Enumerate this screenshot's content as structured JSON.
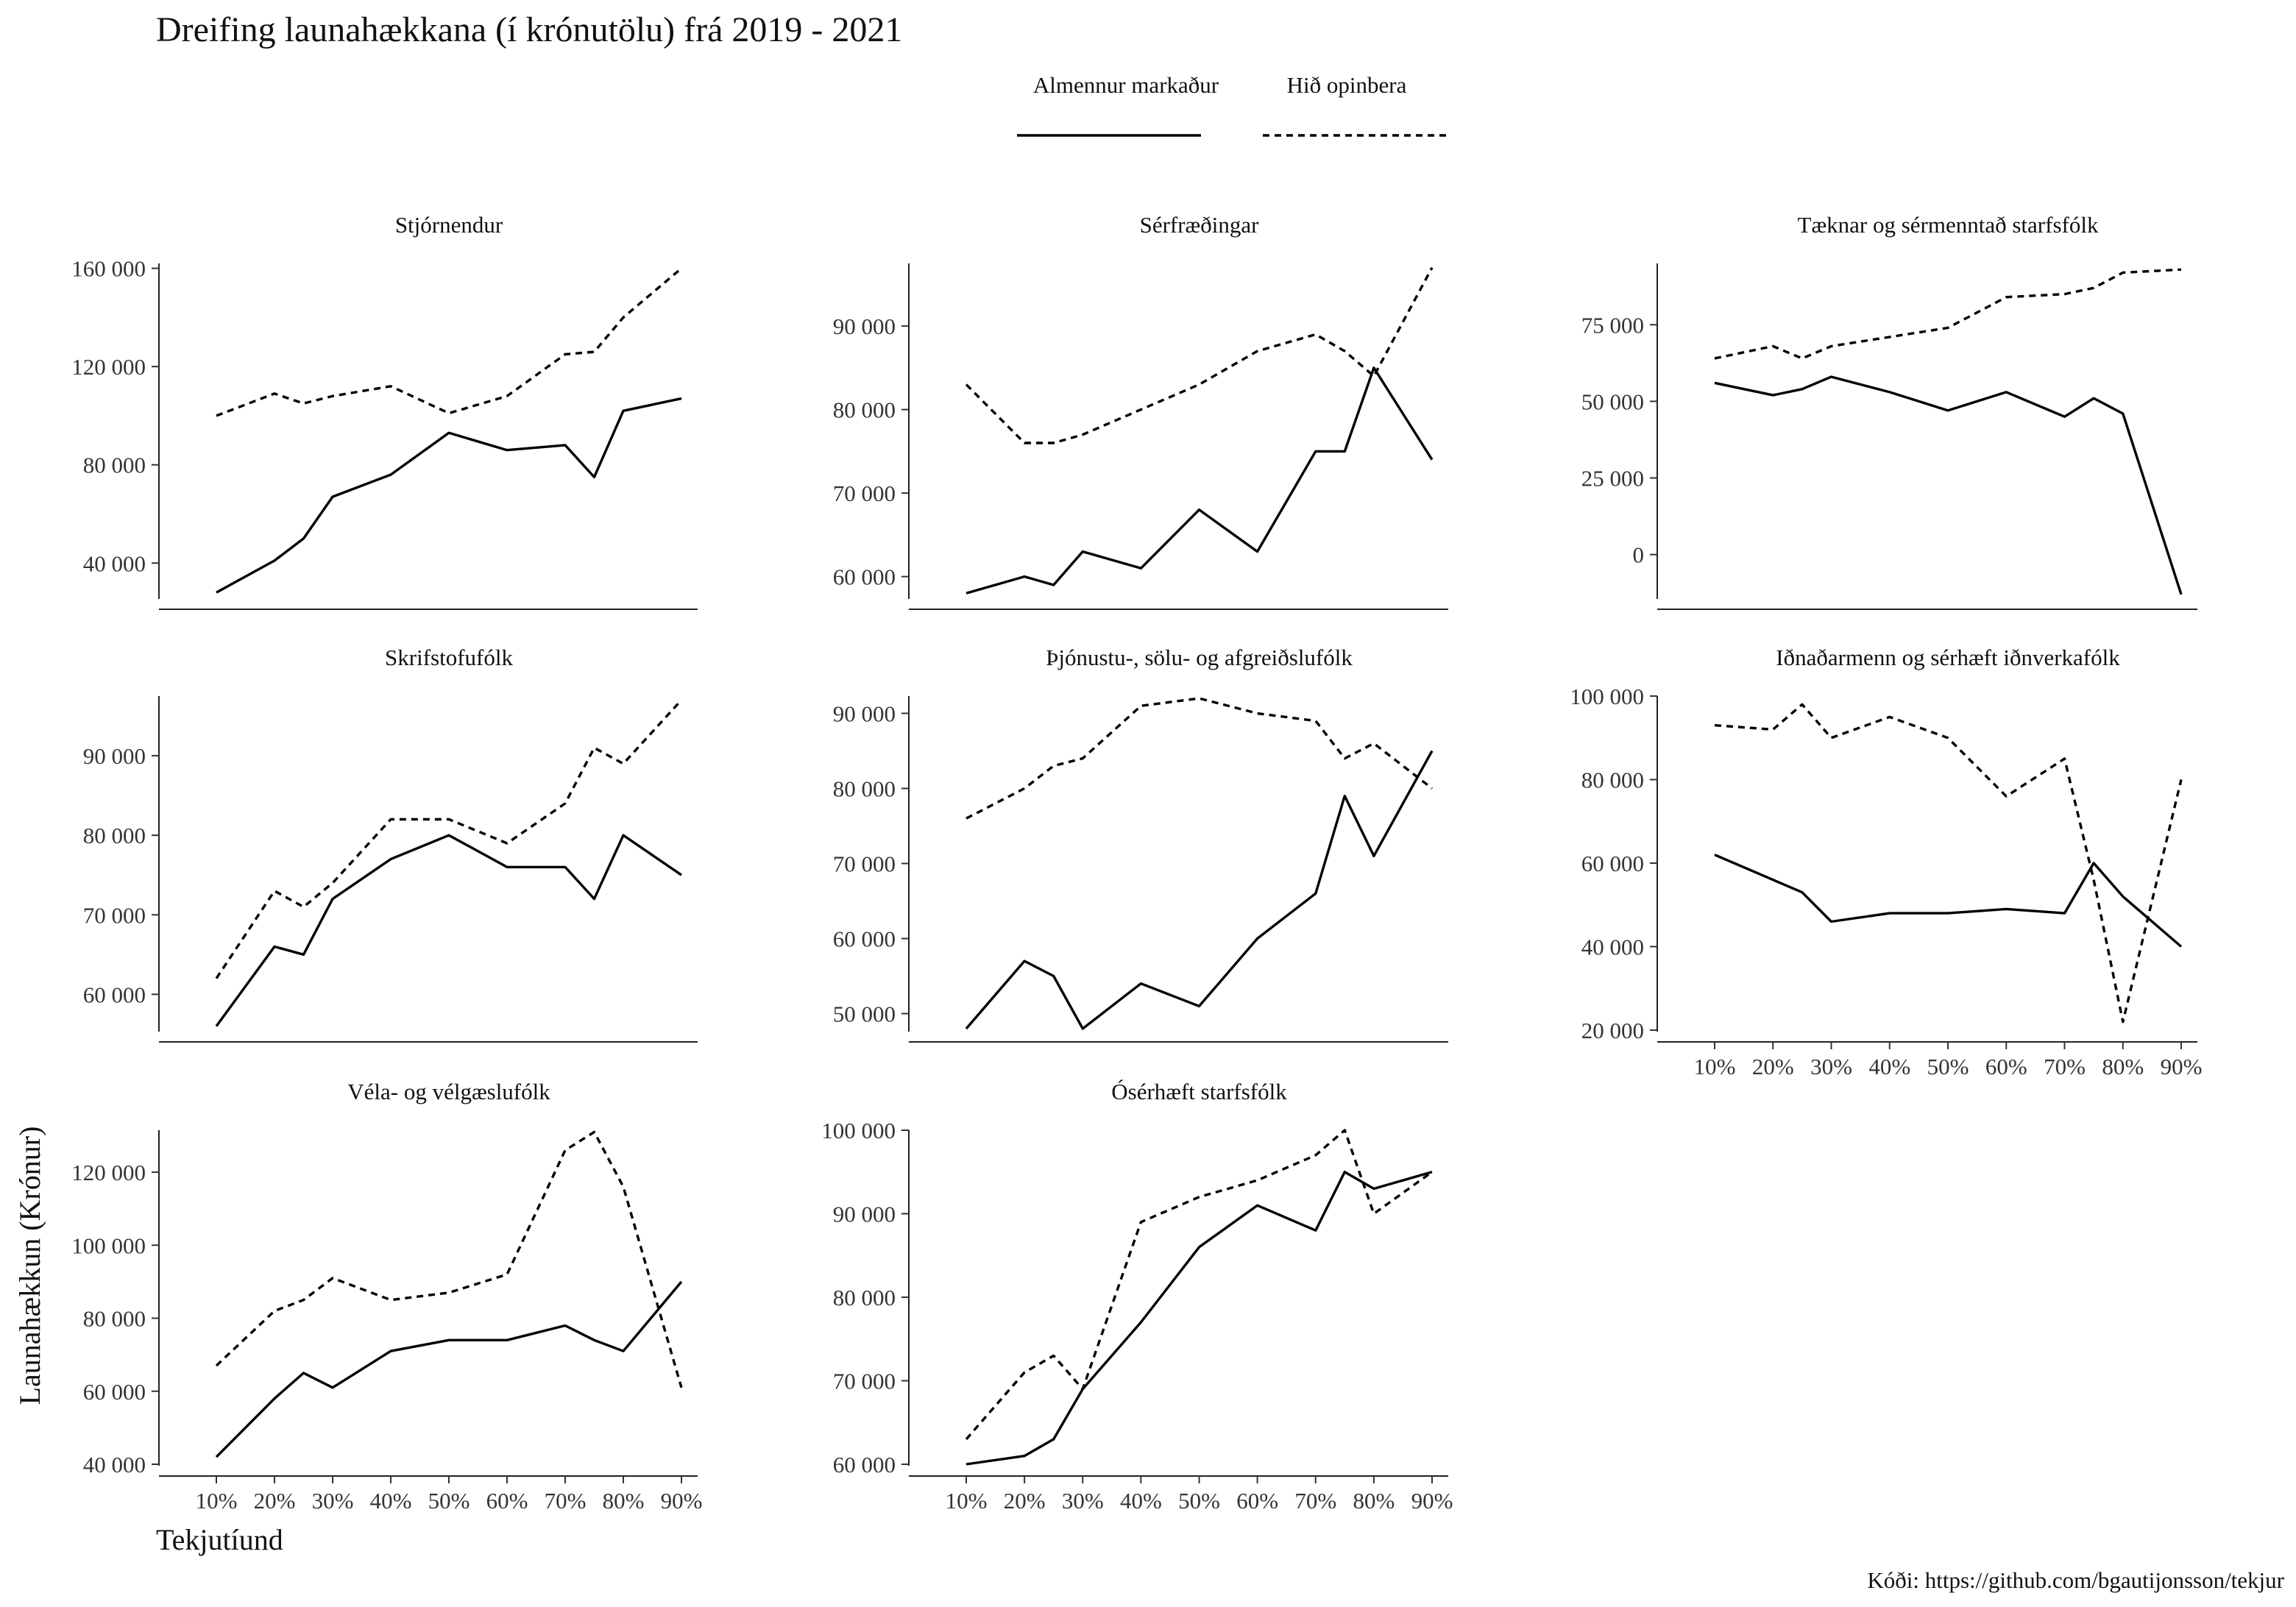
{
  "title": "Dreifing launahækkana (í krónutölu) frá 2019 - 2021",
  "caption": "Kóði: https://github.com/bgautijonsson/tekjur",
  "legend": {
    "items": [
      {
        "label": "Almennur markaður",
        "style": "solid"
      },
      {
        "label": "Hið opinbera",
        "style": "dotted"
      }
    ],
    "placement": "top-center"
  },
  "chart_data": {
    "type": "line",
    "xlabel": "Tekjutíund",
    "ylabel": "Launahækkun (Krónur)",
    "x": [
      10,
      20,
      25,
      30,
      40,
      50,
      60,
      70,
      75,
      80,
      90
    ],
    "x_tick_values": [
      10,
      20,
      30,
      40,
      50,
      60,
      70,
      80,
      90
    ],
    "x_tick_labels": [
      "10%",
      "20%",
      "30%",
      "40%",
      "50%",
      "60%",
      "70%",
      "80%",
      "90%"
    ],
    "grid": false,
    "series_names": [
      "Almennur markaður",
      "Hið opinbera"
    ],
    "facets": [
      {
        "title": "Stjórnendur",
        "ylim": [
          26000,
          162000
        ],
        "yticks": [
          40000,
          80000,
          120000,
          160000
        ],
        "ytick_labels": [
          "40 000",
          "80 000",
          "120 000",
          "160 000"
        ],
        "series": [
          {
            "values": [
              28000,
              41000,
              50000,
              67000,
              76000,
              93000,
              86000,
              88000,
              75000,
              102000,
              107000
            ]
          },
          {
            "values": [
              100000,
              109000,
              105000,
              108000,
              112000,
              101000,
              108000,
              125000,
              126000,
              140000,
              160000
            ]
          }
        ]
      },
      {
        "title": "Sérfræðingar",
        "ylim": [
          57500,
          97500
        ],
        "yticks": [
          60000,
          70000,
          80000,
          90000
        ],
        "ytick_labels": [
          "60 000",
          "70 000",
          "80 000",
          "90 000"
        ],
        "series": [
          {
            "values": [
              58000,
              60000,
              59000,
              63000,
              61000,
              68000,
              63000,
              75000,
              75000,
              85000,
              74000
            ]
          },
          {
            "values": [
              83000,
              76000,
              76000,
              77000,
              80000,
              83000,
              87000,
              89000,
              87000,
              84000,
              97000
            ]
          }
        ]
      },
      {
        "title": "Tæknar og sérmenntað starfsfólk",
        "ylim": [
          -14000,
          95000
        ],
        "yticks": [
          0,
          25000,
          50000,
          75000
        ],
        "ytick_labels": [
          "0",
          "25 000",
          "50 000",
          "75 000"
        ],
        "series": [
          {
            "values": [
              56000,
              52000,
              54000,
              58000,
              53000,
              47000,
              53000,
              45000,
              51000,
              46000,
              -13000
            ]
          },
          {
            "values": [
              64000,
              68000,
              64000,
              68000,
              71000,
              74000,
              84000,
              85000,
              87000,
              92000,
              93000
            ]
          }
        ]
      },
      {
        "title": "Skrifstofufólk",
        "ylim": [
          55500,
          97500
        ],
        "yticks": [
          60000,
          70000,
          80000,
          90000
        ],
        "ytick_labels": [
          "60 000",
          "70 000",
          "80 000",
          "90 000"
        ],
        "series": [
          {
            "values": [
              56000,
              66000,
              65000,
              72000,
              77000,
              80000,
              76000,
              76000,
              72000,
              80000,
              75000
            ]
          },
          {
            "values": [
              62000,
              73000,
              71000,
              74000,
              82000,
              82000,
              79000,
              84000,
              91000,
              89000,
              97000
            ]
          }
        ]
      },
      {
        "title": "Þjónustu-, sölu- og afgreiðslufólk",
        "ylim": [
          47800,
          92300
        ],
        "yticks": [
          50000,
          60000,
          70000,
          80000,
          90000
        ],
        "ytick_labels": [
          "50 000",
          "60 000",
          "70 000",
          "80 000",
          "90 000"
        ],
        "series": [
          {
            "values": [
              48000,
              57000,
              55000,
              48000,
              54000,
              51000,
              60000,
              66000,
              79000,
              71000,
              85000
            ]
          },
          {
            "values": [
              76000,
              80000,
              83000,
              84000,
              91000,
              92000,
              90000,
              89000,
              84000,
              86000,
              80000
            ]
          }
        ]
      },
      {
        "title": "Iðnaðarmenn og sérhæft iðnverkafólk",
        "ylim": [
          20000,
          100000
        ],
        "yticks": [
          20000,
          40000,
          60000,
          80000,
          100000
        ],
        "ytick_labels": [
          "20 000",
          "40 000",
          "60 000",
          "80 000",
          "100 000"
        ],
        "series": [
          {
            "values": [
              62000,
              56000,
              53000,
              46000,
              48000,
              48000,
              49000,
              48000,
              60000,
              52000,
              40000
            ]
          },
          {
            "values": [
              93000,
              92000,
              98000,
              90000,
              95000,
              90000,
              76000,
              85000,
              56000,
              22000,
              80000
            ]
          }
        ]
      },
      {
        "title": "Véla- og vélgæslufólk",
        "ylim": [
          40000,
          131500
        ],
        "yticks": [
          40000,
          60000,
          80000,
          100000,
          120000
        ],
        "ytick_labels": [
          "40 000",
          "60 000",
          "80 000",
          "100 000",
          "120 000"
        ],
        "series": [
          {
            "values": [
              42000,
              58000,
              65000,
              61000,
              71000,
              74000,
              74000,
              78000,
              74000,
              71000,
              90000
            ]
          },
          {
            "values": [
              67000,
              82000,
              85000,
              91000,
              85000,
              87000,
              92000,
              126000,
              131000,
              116000,
              61000
            ]
          }
        ]
      },
      {
        "title": "Ósérhæft starfsfólk",
        "ylim": [
          60000,
          100000
        ],
        "yticks": [
          60000,
          70000,
          80000,
          90000,
          100000
        ],
        "ytick_labels": [
          "60 000",
          "70 000",
          "80 000",
          "90 000",
          "100 000"
        ],
        "series": [
          {
            "values": [
              60000,
              61000,
              63000,
              69000,
              77000,
              86000,
              91000,
              88000,
              95000,
              93000,
              95000
            ]
          },
          {
            "values": [
              63000,
              71000,
              73000,
              69000,
              89000,
              92000,
              94000,
              97000,
              100000,
              90000,
              95000
            ]
          }
        ]
      }
    ]
  }
}
